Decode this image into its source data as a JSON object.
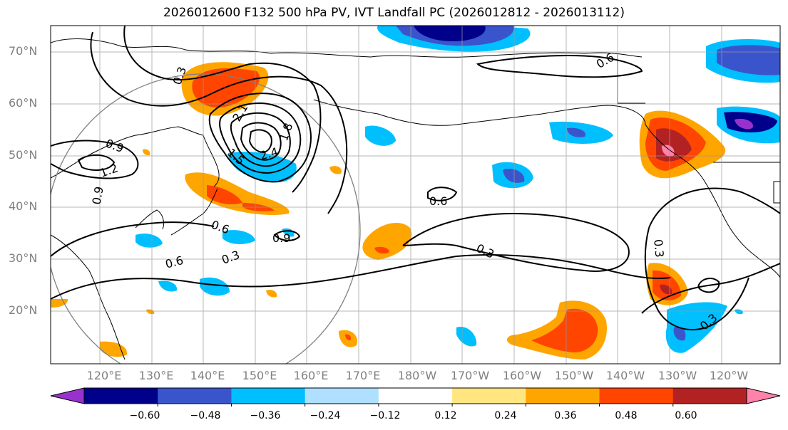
{
  "title": "2026012600 F132 500 hPa PV, IVT Landfall PC (2026012812 - 2026013112)",
  "lat_labels": [
    "70°N",
    "60°N",
    "50°N",
    "40°N",
    "30°N",
    "20°N"
  ],
  "lon_labels": [
    "120°E",
    "130°E",
    "140°E",
    "150°E",
    "160°E",
    "170°E",
    "180°W",
    "170°W",
    "160°W",
    "150°W",
    "140°W",
    "130°W",
    "120°W"
  ],
  "contour_labels": [
    "0.3",
    "0.6",
    "0.9",
    "1.2",
    "1.5",
    "1.8",
    "2.1",
    "2.4",
    "0.9",
    "0.6",
    "0.3",
    "0.3",
    "0.6",
    "0.9",
    "0.3",
    "0.6",
    "0.3"
  ],
  "colorbar": {
    "ticks": [
      "−0.60",
      "−0.48",
      "−0.36",
      "−0.24",
      "−0.12",
      "0.12",
      "0.24",
      "0.36",
      "0.48",
      "0.60"
    ],
    "colors": [
      "#9932cc",
      "#00008b",
      "#3a55cc",
      "#00bfff",
      "#b0e0ff",
      "#ffffff",
      "#ffe680",
      "#ffa500",
      "#ff4500",
      "#b22222",
      "#ff82ab"
    ]
  }
}
